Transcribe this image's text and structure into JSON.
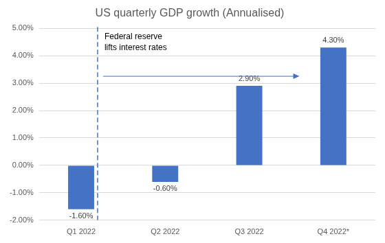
{
  "chart_data": {
    "type": "bar",
    "title": "US quarterly GDP growth (Annualised)",
    "categories": [
      "Q1 2022",
      "Q2 2022",
      "Q3 2022",
      "Q4 2022*"
    ],
    "values": [
      -1.6,
      -0.6,
      2.9,
      4.3
    ],
    "value_labels": [
      "-1.60%",
      "-0.60%",
      "2.90%",
      "4.30%"
    ],
    "color": "#4472c4",
    "ylim": [
      -2,
      5
    ],
    "yticks": [
      {
        "value": -2,
        "label": "-2.00%"
      },
      {
        "value": -1,
        "label": "-1.00%"
      },
      {
        "value": 0,
        "label": "0.00%"
      },
      {
        "value": 1,
        "label": "1.00%"
      },
      {
        "value": 2,
        "label": "2.00%"
      },
      {
        "value": 3,
        "label": "3.00%"
      },
      {
        "value": 4,
        "label": "4.00%"
      },
      {
        "value": 5,
        "label": "5.00%"
      }
    ],
    "grid": true,
    "data_labels": true,
    "annotation": "Federal reserve lifts interest rates"
  }
}
